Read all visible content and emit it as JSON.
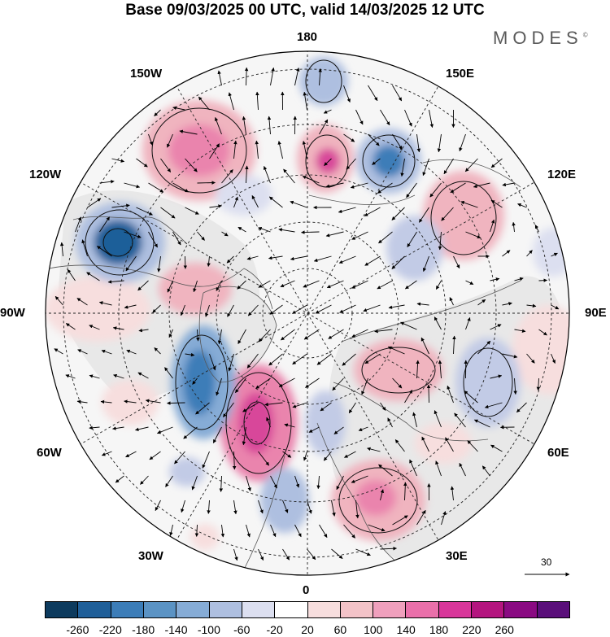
{
  "title": "Base 09/03/2025 00 UTC, valid 14/03/2025 12 UTC",
  "brand": "MODES",
  "brand_mark": "©",
  "map": {
    "projection": "north-polar-stereographic",
    "longitude_labels": {
      "top": "180",
      "bottom": "0",
      "left": "90W",
      "right": "90E",
      "upper_left_1": "150W",
      "upper_left_2": "120W",
      "lower_left_1": "60W",
      "lower_left_2": "30W",
      "upper_right_1": "150E",
      "upper_right_2": "120E",
      "lower_right_1": "60E",
      "lower_right_2": "30E"
    },
    "wind_scale_value": "30",
    "colors": {
      "neg_strong": "#1f5f99",
      "neg_mid": "#5b93c4",
      "neg_light": "#aebfe0",
      "neg_faint": "#dcdff0",
      "pos_faint": "#f7dede",
      "pos_light": "#f0b4bf",
      "pos_mid": "#ea84ad",
      "pos_strong": "#d8469a",
      "land_grey": "#ececec"
    }
  },
  "colorbar": {
    "colors": [
      "#0d3b5e",
      "#1f5f99",
      "#3c7db8",
      "#5b93c4",
      "#86acd6",
      "#aebfe0",
      "#dcdff0",
      "#ffffff",
      "#f7dede",
      "#f3c3c8",
      "#f0a0bd",
      "#ea70aa",
      "#d8369a",
      "#b4157f",
      "#8a0a82",
      "#5a0f7a"
    ],
    "ticks": [
      "-260",
      "-220",
      "-180",
      "-140",
      "-100",
      "-60",
      "-20",
      "20",
      "60",
      "100",
      "140",
      "180",
      "220",
      "260"
    ]
  }
}
